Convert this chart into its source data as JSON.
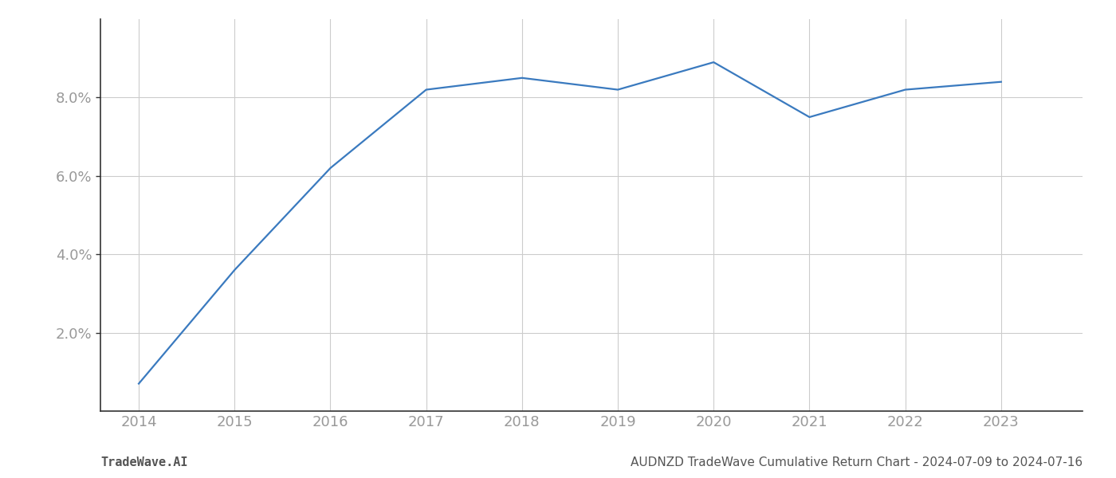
{
  "title": "AUDNZD TradeWave Cumulative Return Chart - 2024-07-09 to 2024-07-16",
  "watermark": "TradeWave.AI",
  "line_color": "#3a7abf",
  "background_color": "#ffffff",
  "grid_color": "#cccccc",
  "x_years": [
    2014,
    2015,
    2016,
    2017,
    2018,
    2019,
    2020,
    2021,
    2022,
    2023
  ],
  "y_values": [
    0.007,
    0.036,
    0.062,
    0.082,
    0.085,
    0.082,
    0.089,
    0.075,
    0.082,
    0.084
  ],
  "ylim": [
    0.0,
    0.1
  ],
  "yticks": [
    0.02,
    0.04,
    0.06,
    0.08
  ],
  "ytick_labels": [
    "2.0%",
    "4.0%",
    "6.0%",
    "8.0%"
  ],
  "xlim_start": 2013.6,
  "xlim_end": 2023.85,
  "line_width": 1.6,
  "spine_color": "#333333",
  "tick_label_color": "#999999",
  "footer_color": "#555555",
  "footer_fontsize": 11,
  "tick_fontsize": 13
}
